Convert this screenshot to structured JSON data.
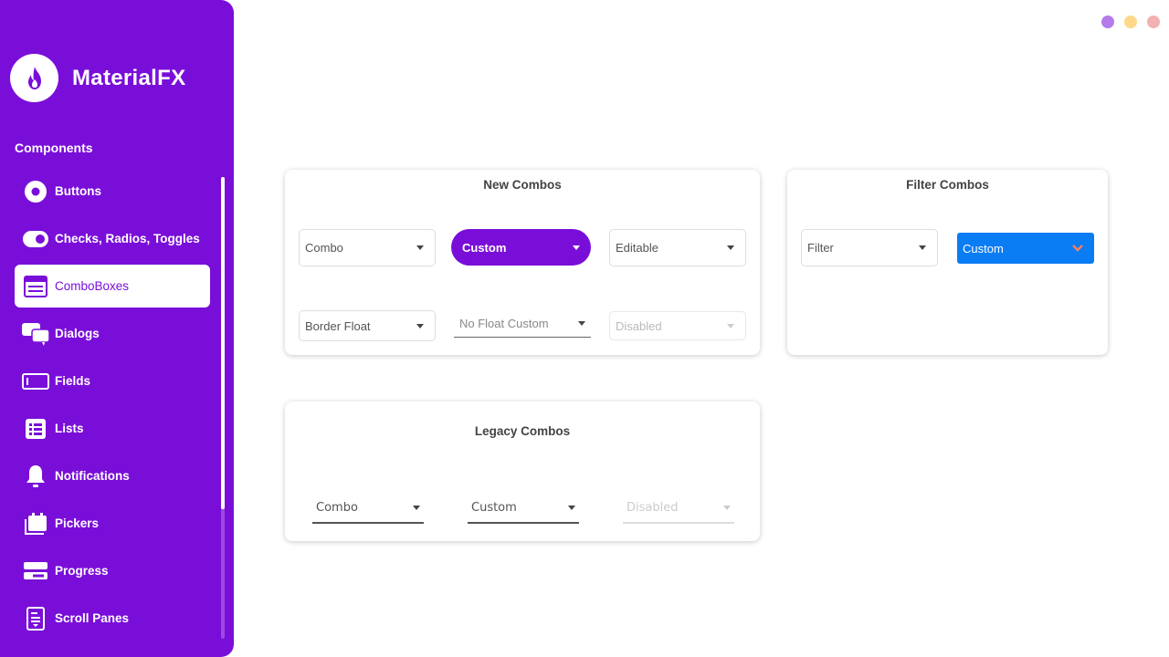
{
  "app": {
    "title": "MaterialFX",
    "section": "Components"
  },
  "colors": {
    "sidebar": "#7a0ed9",
    "accent_blue": "#0a7cf4",
    "dot_purple": "#b57bea",
    "dot_yellow": "#ffd88a",
    "dot_red": "#f4b1b1"
  },
  "sidebar": {
    "items": [
      {
        "label": "Buttons",
        "icon": "radio-button-icon"
      },
      {
        "label": "Checks, Radios, Toggles",
        "icon": "toggle-icon"
      },
      {
        "label": "ComboBoxes",
        "icon": "combobox-icon",
        "active": true
      },
      {
        "label": "Dialogs",
        "icon": "chat-bubbles-icon"
      },
      {
        "label": "Fields",
        "icon": "text-field-icon"
      },
      {
        "label": "Lists",
        "icon": "list-icon"
      },
      {
        "label": "Notifications",
        "icon": "bell-icon"
      },
      {
        "label": "Pickers",
        "icon": "calendar-icon"
      },
      {
        "label": "Progress",
        "icon": "progress-icon"
      },
      {
        "label": "Scroll Panes",
        "icon": "scroll-pane-icon"
      }
    ]
  },
  "new_combos": {
    "title": "New Combos",
    "combo": "Combo",
    "custom": "Custom",
    "editable": "Editable",
    "border_float": "Border Float",
    "no_float_custom": "No Float Custom",
    "disabled": "Disabled"
  },
  "filter_combos": {
    "title": "Filter Combos",
    "filter": "Filter",
    "custom": "Custom"
  },
  "legacy_combos": {
    "title": "Legacy Combos",
    "combo": "Combo",
    "custom": "Custom",
    "disabled": "Disabled"
  }
}
